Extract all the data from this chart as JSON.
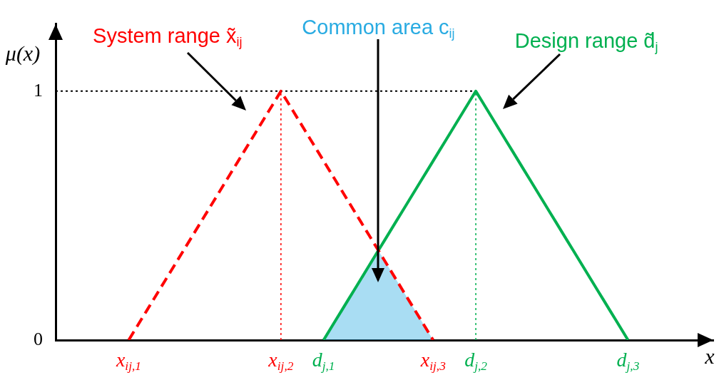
{
  "chart_data": {
    "type": "line",
    "xlabel": "x",
    "ylabel": "μ(x)",
    "categories": [
      null,
      null,
      null,
      null,
      null,
      null,
      null,
      null,
      null,
      null,
      null,
      null,
      "x$_{ij,1}$",
      null,
      null,
      null,
      null,
      null,
      null,
      null,
      null,
      null,
      null,
      null,
      null,
      null,
      null,
      null,
      null,
      null,
      null,
      null,
      null,
      null,
      null,
      null,
      null,
      "x$_{ij,2}$",
      null,
      null,
      null,
      null,
      null,
      null,
      "d$_{j,1}$",
      null,
      null,
      null,
      null,
      null,
      null,
      null,
      null,
      null,
      null,
      null,
      null,
      null,
      null,
      null,
      null,
      null,
      "x$_{ij,3}$",
      null,
      null,
      null,
      null,
      null,
      null,
      "d$_{j,2}$",
      null,
      null,
      null,
      null,
      null,
      null,
      null,
      null,
      null,
      null,
      null,
      null,
      null,
      null,
      null,
      null,
      null,
      null,
      null,
      null,
      null,
      null,
      null,
      null,
      "d$_{j,3}$",
      null,
      null,
      null,
      null,
      null,
      null,
      null,
      null,
      null,
      null,
      null,
      null,
      null,
      null
    ],
    "ylim": [
      0,
      1.27
    ],
    "yticks": [
      0,
      1
    ],
    "grid": false,
    "legend": false,
    "marker": "none",
    "series": [
      {
        "name": "System range x̃$_{ij}$",
        "color": "#ff0000",
        "line_style": "dashed",
        "values": [
          null,
          null,
          null,
          null,
          null,
          null,
          null,
          null,
          null,
          null,
          null,
          null,
          0,
          0.04,
          0.08,
          0.12,
          0.16,
          0.2,
          0.24,
          0.28,
          0.32,
          0.36,
          0.4,
          0.44,
          0.48,
          0.52,
          0.56,
          0.6,
          0.64,
          0.68,
          0.72,
          0.76,
          0.8,
          0.84,
          0.88,
          0.92,
          0.96,
          1,
          0.96,
          0.92,
          0.88,
          0.84,
          0.8,
          0.76,
          0.72,
          0.68,
          0.64,
          0.6,
          0.56,
          0.52,
          0.48,
          0.44,
          0.4,
          0.36,
          0.32,
          0.28,
          0.24,
          0.2,
          0.16,
          0.12,
          0.08,
          0.04,
          0,
          null,
          null,
          null,
          null,
          null,
          null,
          null,
          null,
          null,
          null,
          null,
          null,
          null,
          null,
          null,
          null,
          null,
          null,
          null,
          null,
          null,
          null,
          null,
          null,
          null,
          null,
          null,
          null,
          null,
          null,
          null,
          null,
          null,
          null,
          null,
          null,
          null,
          null,
          null,
          null,
          null,
          null,
          null,
          null,
          null,
          null
        ]
      },
      {
        "name": "Common area c$_{ij}$",
        "type": "area",
        "color": "#29abe2",
        "values": [
          null,
          null,
          null,
          null,
          null,
          null,
          null,
          null,
          null,
          null,
          null,
          null,
          null,
          null,
          null,
          null,
          null,
          null,
          null,
          null,
          null,
          null,
          null,
          null,
          null,
          null,
          null,
          null,
          null,
          null,
          null,
          null,
          null,
          null,
          null,
          null,
          null,
          null,
          null,
          null,
          null,
          null,
          null,
          null,
          0,
          0.04,
          0.08,
          0.12,
          0.16,
          0.2,
          0.24,
          0.28,
          0.32,
          0.36,
          0.32,
          0.28,
          0.24,
          0.2,
          0.16,
          0.12,
          0.08,
          0.04,
          0,
          null,
          null,
          null,
          null,
          null,
          null,
          null,
          null,
          null,
          null,
          null,
          null,
          null,
          null,
          null,
          null,
          null,
          null,
          null,
          null,
          null,
          null,
          null,
          null,
          null,
          null,
          null,
          null,
          null,
          null,
          null,
          null,
          null,
          null,
          null,
          null,
          null,
          null,
          null,
          null,
          null,
          null,
          null,
          null,
          null,
          null
        ]
      },
      {
        "name": "Design range d̃$_{j}$",
        "color": "#00b050",
        "line_style": "solid",
        "values": [
          null,
          null,
          null,
          null,
          null,
          null,
          null,
          null,
          null,
          null,
          null,
          null,
          null,
          null,
          null,
          null,
          null,
          null,
          null,
          null,
          null,
          null,
          null,
          null,
          null,
          null,
          null,
          null,
          null,
          null,
          null,
          null,
          null,
          null,
          null,
          null,
          null,
          null,
          null,
          null,
          null,
          null,
          null,
          null,
          0,
          0.04,
          0.08,
          0.12,
          0.16,
          0.2,
          0.24,
          0.28,
          0.32,
          0.36,
          0.4,
          0.44,
          0.48,
          0.52,
          0.56,
          0.6,
          0.64,
          0.68,
          0.72,
          0.76,
          0.8,
          0.84,
          0.88,
          0.92,
          0.96,
          1,
          0.96,
          0.92,
          0.88,
          0.84,
          0.8,
          0.76,
          0.72,
          0.68,
          0.64,
          0.6,
          0.56,
          0.52,
          0.48,
          0.44,
          0.4,
          0.36,
          0.32,
          0.28,
          0.24,
          0.2,
          0.16,
          0.12,
          0.08,
          0.04,
          0,
          null,
          null,
          null,
          null,
          null,
          null,
          null,
          null,
          null,
          null,
          null,
          null,
          null,
          null
        ]
      }
    ],
    "ref_lines": [
      {
        "axis": "x",
        "value": "x$_{ij,2}$",
        "color": "#ff0000",
        "line_style": "dotted"
      },
      {
        "axis": "x",
        "value": "d$_{j,2}$",
        "color": "#00b050",
        "line_style": "dotted"
      },
      {
        "axis": "y",
        "value": 1,
        "color": "#000000",
        "line_style": "dotted"
      }
    ]
  }
}
